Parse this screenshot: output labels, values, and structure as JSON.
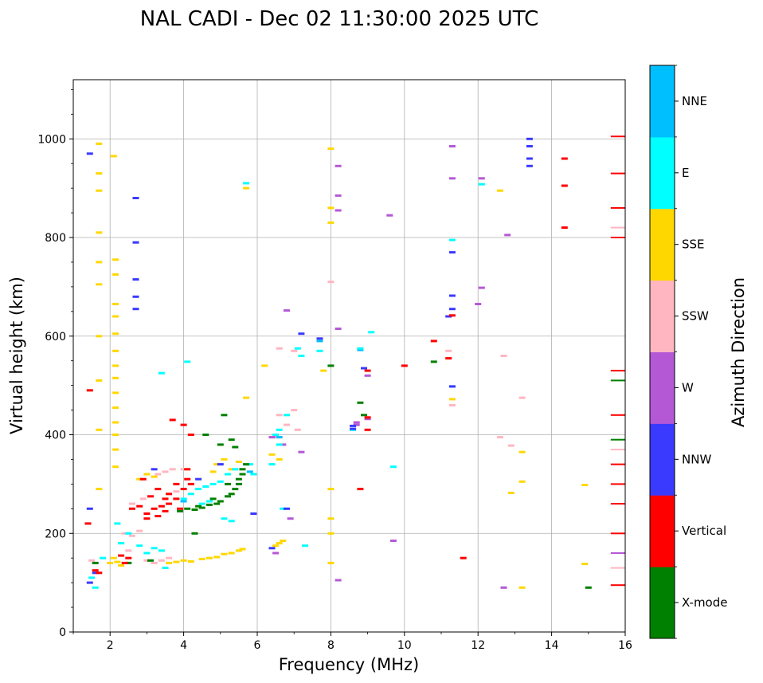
{
  "chart_data": {
    "type": "scatter",
    "title": "NAL CADI - Dec 02 11:30:00 2025 UTC",
    "xlabel": "Frequency (MHz)",
    "ylabel": "Virtual height (km)",
    "xlim": [
      1,
      16
    ],
    "ylim": [
      0,
      1120
    ],
    "xticks": [
      2,
      4,
      6,
      8,
      10,
      12,
      14,
      16
    ],
    "yticks": [
      0,
      200,
      400,
      600,
      800,
      1000
    ],
    "grid": true,
    "colorbar": {
      "label": "Azimuth Direction",
      "entries": [
        {
          "name": "X-mode",
          "color": "#008000"
        },
        {
          "name": "Vertical",
          "color": "#ff0000"
        },
        {
          "name": "NNW",
          "color": "#3a3aff"
        },
        {
          "name": "W",
          "color": "#b558d6"
        },
        {
          "name": "SSW",
          "color": "#ffb6c1"
        },
        {
          "name": "SSE",
          "color": "#ffd700"
        },
        {
          "name": "E",
          "color": "#00ffff"
        },
        {
          "name": "NNE",
          "color": "#00bfff"
        }
      ]
    },
    "series": [
      {
        "name": "X-mode",
        "points": [
          [
            5.3,
            280
          ],
          [
            5.5,
            300
          ],
          [
            5.6,
            320
          ],
          [
            5.0,
            265
          ],
          [
            4.7,
            258
          ],
          [
            4.5,
            252
          ],
          [
            4.3,
            248
          ],
          [
            4.1,
            250
          ],
          [
            3.9,
            245
          ],
          [
            5.7,
            340
          ],
          [
            5.4,
            290
          ],
          [
            5.2,
            275
          ],
          [
            4.9,
            260
          ],
          [
            5.4,
            375
          ],
          [
            5.1,
            440
          ],
          [
            4.6,
            400
          ],
          [
            8.8,
            465
          ],
          [
            8.9,
            440
          ],
          [
            8.0,
            540
          ],
          [
            10.8,
            548
          ],
          [
            15.0,
            90
          ],
          [
            15.8,
            510
          ],
          [
            15.8,
            390
          ],
          [
            3.1,
            145
          ],
          [
            2.5,
            140
          ],
          [
            1.6,
            140
          ],
          [
            4.3,
            200
          ],
          [
            5.3,
            390
          ],
          [
            5.0,
            380
          ],
          [
            5.2,
            300
          ],
          [
            4.8,
            270
          ],
          [
            4.4,
            255
          ],
          [
            5.5,
            310
          ],
          [
            5.6,
            330
          ]
        ]
      },
      {
        "name": "Vertical",
        "points": [
          [
            3.0,
            240
          ],
          [
            3.2,
            250
          ],
          [
            3.4,
            255
          ],
          [
            3.6,
            260
          ],
          [
            3.8,
            270
          ],
          [
            4.0,
            290
          ],
          [
            4.2,
            300
          ],
          [
            3.0,
            230
          ],
          [
            3.3,
            235
          ],
          [
            3.5,
            245
          ],
          [
            3.9,
            250
          ],
          [
            2.8,
            255
          ],
          [
            2.6,
            250
          ],
          [
            2.4,
            140
          ],
          [
            2.5,
            150
          ],
          [
            2.3,
            155
          ],
          [
            1.6,
            125
          ],
          [
            1.7,
            120
          ],
          [
            4.1,
            330
          ],
          [
            4.2,
            400
          ],
          [
            3.7,
            430
          ],
          [
            4.0,
            420
          ],
          [
            2.9,
            310
          ],
          [
            3.3,
            290
          ],
          [
            3.6,
            280
          ],
          [
            8.8,
            290
          ],
          [
            9.0,
            435
          ],
          [
            9.0,
            530
          ],
          [
            9.0,
            410
          ],
          [
            10.8,
            590
          ],
          [
            11.2,
            555
          ],
          [
            11.6,
            150
          ],
          [
            1.45,
            490
          ],
          [
            1.4,
            220
          ],
          [
            14.35,
            905
          ],
          [
            14.35,
            820
          ],
          [
            14.35,
            960
          ],
          [
            11.3,
            642
          ],
          [
            15.8,
            1005
          ],
          [
            15.8,
            930
          ],
          [
            15.8,
            860
          ],
          [
            15.8,
            800
          ],
          [
            15.8,
            530
          ],
          [
            15.8,
            440
          ],
          [
            15.8,
            340
          ],
          [
            15.8,
            300
          ],
          [
            15.8,
            260
          ],
          [
            15.8,
            200
          ],
          [
            15.8,
            95
          ],
          [
            3.1,
            275
          ],
          [
            3.8,
            300
          ],
          [
            4.1,
            310
          ],
          [
            3.5,
            270
          ],
          [
            10.0,
            540
          ]
        ]
      },
      {
        "name": "NNW",
        "points": [
          [
            13.4,
            1000
          ],
          [
            13.4,
            985
          ],
          [
            13.4,
            960
          ],
          [
            13.4,
            945
          ],
          [
            11.3,
            770
          ],
          [
            11.3,
            655
          ],
          [
            11.3,
            682
          ],
          [
            11.3,
            498
          ],
          [
            11.2,
            640
          ],
          [
            8.9,
            535
          ],
          [
            8.6,
            412
          ],
          [
            8.6,
            418
          ],
          [
            6.8,
            250
          ],
          [
            5.9,
            240
          ],
          [
            7.2,
            605
          ],
          [
            7.7,
            595
          ],
          [
            1.45,
            970
          ],
          [
            1.45,
            250
          ],
          [
            1.45,
            100
          ],
          [
            2.7,
            880
          ],
          [
            2.7,
            790
          ],
          [
            2.7,
            715
          ],
          [
            2.7,
            655
          ],
          [
            2.7,
            680
          ],
          [
            6.4,
            170
          ],
          [
            3.2,
            330
          ],
          [
            1.6,
            120
          ],
          [
            4.4,
            310
          ],
          [
            5.0,
            340
          ]
        ]
      },
      {
        "name": "W",
        "points": [
          [
            12.8,
            805
          ],
          [
            12.1,
            698
          ],
          [
            12.0,
            665
          ],
          [
            11.3,
            985
          ],
          [
            11.3,
            920
          ],
          [
            12.1,
            920
          ],
          [
            8.2,
            945
          ],
          [
            8.2,
            885
          ],
          [
            8.2,
            855
          ],
          [
            8.2,
            615
          ],
          [
            8.2,
            105
          ],
          [
            8.7,
            420
          ],
          [
            8.7,
            425
          ],
          [
            9.0,
            432
          ],
          [
            9.0,
            520
          ],
          [
            9.6,
            845
          ],
          [
            9.7,
            185
          ],
          [
            12.7,
            90
          ],
          [
            6.8,
            652
          ],
          [
            6.5,
            160
          ],
          [
            15.8,
            160
          ],
          [
            7.2,
            365
          ],
          [
            6.9,
            230
          ],
          [
            6.4,
            395
          ],
          [
            6.7,
            380
          ]
        ]
      },
      {
        "name": "SSW",
        "points": [
          [
            3.2,
            140
          ],
          [
            3.4,
            145
          ],
          [
            3.6,
            150
          ],
          [
            3.0,
            145
          ],
          [
            2.6,
            195
          ],
          [
            2.8,
            205
          ],
          [
            2.4,
            200
          ],
          [
            3.3,
            320
          ],
          [
            3.5,
            325
          ],
          [
            3.7,
            330
          ],
          [
            2.6,
            260
          ],
          [
            2.9,
            270
          ],
          [
            6.6,
            440
          ],
          [
            6.8,
            420
          ],
          [
            7.0,
            450
          ],
          [
            7.1,
            410
          ],
          [
            6.5,
            395
          ],
          [
            6.6,
            575
          ],
          [
            7.0,
            570
          ],
          [
            8.0,
            710
          ],
          [
            13.2,
            475
          ],
          [
            12.7,
            560
          ],
          [
            12.6,
            395
          ],
          [
            12.9,
            378
          ],
          [
            11.3,
            460
          ],
          [
            11.2,
            570
          ],
          [
            15.8,
            820
          ],
          [
            15.8,
            370
          ],
          [
            15.8,
            130
          ],
          [
            1.5,
            145
          ],
          [
            4.0,
            330
          ],
          [
            3.8,
            285
          ],
          [
            2.5,
            165
          ]
        ]
      },
      {
        "name": "SSE",
        "points": [
          [
            3.6,
            140
          ],
          [
            3.8,
            142
          ],
          [
            4.0,
            145
          ],
          [
            4.2,
            143
          ],
          [
            4.5,
            148
          ],
          [
            4.7,
            150
          ],
          [
            4.9,
            152
          ],
          [
            5.1,
            158
          ],
          [
            5.3,
            160
          ],
          [
            5.5,
            165
          ],
          [
            5.6,
            168
          ],
          [
            6.6,
            180
          ],
          [
            6.7,
            185
          ],
          [
            6.5,
            175
          ],
          [
            2.1,
            150
          ],
          [
            2.0,
            140
          ],
          [
            2.3,
            135
          ],
          [
            2.2,
            142
          ],
          [
            4.9,
            340
          ],
          [
            5.1,
            350
          ],
          [
            5.3,
            330
          ],
          [
            5.5,
            345
          ],
          [
            3.0,
            320
          ],
          [
            2.8,
            310
          ],
          [
            3.2,
            315
          ],
          [
            12.6,
            895
          ],
          [
            13.2,
            365
          ],
          [
            13.2,
            305
          ],
          [
            12.9,
            282
          ],
          [
            13.2,
            90
          ],
          [
            14.9,
            298
          ],
          [
            14.9,
            138
          ],
          [
            11.3,
            472
          ],
          [
            6.6,
            350
          ],
          [
            6.4,
            360
          ],
          [
            7.8,
            530
          ],
          [
            8.0,
            980
          ],
          [
            8.0,
            860
          ],
          [
            8.0,
            830
          ],
          [
            8.0,
            290
          ],
          [
            8.0,
            230
          ],
          [
            8.0,
            200
          ],
          [
            8.0,
            140
          ],
          [
            2.1,
            965
          ],
          [
            2.15,
            755
          ],
          [
            2.15,
            725
          ],
          [
            2.15,
            665
          ],
          [
            2.15,
            640
          ],
          [
            2.15,
            605
          ],
          [
            2.15,
            570
          ],
          [
            2.15,
            540
          ],
          [
            2.15,
            515
          ],
          [
            2.15,
            485
          ],
          [
            2.15,
            455
          ],
          [
            2.15,
            425
          ],
          [
            2.15,
            400
          ],
          [
            2.15,
            370
          ],
          [
            2.15,
            335
          ],
          [
            1.7,
            990
          ],
          [
            1.7,
            930
          ],
          [
            1.7,
            895
          ],
          [
            1.7,
            810
          ],
          [
            1.7,
            750
          ],
          [
            1.7,
            705
          ],
          [
            1.7,
            600
          ],
          [
            1.7,
            510
          ],
          [
            1.7,
            410
          ],
          [
            1.7,
            290
          ],
          [
            5.7,
            900
          ],
          [
            5.7,
            475
          ],
          [
            6.2,
            540
          ],
          [
            4.8,
            325
          ]
        ]
      },
      {
        "name": "E",
        "points": [
          [
            3.2,
            170
          ],
          [
            3.4,
            165
          ],
          [
            3.0,
            160
          ],
          [
            2.8,
            175
          ],
          [
            4.0,
            270
          ],
          [
            4.2,
            280
          ],
          [
            4.4,
            290
          ],
          [
            4.6,
            295
          ],
          [
            4.8,
            300
          ],
          [
            5.0,
            305
          ],
          [
            5.2,
            320
          ],
          [
            5.4,
            330
          ],
          [
            5.8,
            340
          ],
          [
            5.9,
            320
          ],
          [
            4.5,
            260
          ],
          [
            4.7,
            265
          ],
          [
            6.5,
            400
          ],
          [
            6.6,
            410
          ],
          [
            6.4,
            340
          ],
          [
            6.6,
            380
          ],
          [
            6.8,
            440
          ],
          [
            7.1,
            575
          ],
          [
            7.2,
            560
          ],
          [
            7.7,
            570
          ],
          [
            8.6,
            410
          ],
          [
            8.8,
            575
          ],
          [
            9.1,
            608
          ],
          [
            9.7,
            335
          ],
          [
            11.3,
            795
          ],
          [
            12.1,
            908
          ],
          [
            5.7,
            910
          ],
          [
            4.1,
            548
          ],
          [
            3.4,
            525
          ],
          [
            1.5,
            110
          ],
          [
            1.6,
            90
          ],
          [
            1.8,
            150
          ],
          [
            2.3,
            180
          ],
          [
            2.5,
            200
          ],
          [
            6.7,
            250
          ],
          [
            5.3,
            225
          ],
          [
            5.1,
            230
          ],
          [
            7.3,
            175
          ],
          [
            2.2,
            220
          ],
          [
            3.5,
            130
          ]
        ]
      },
      {
        "name": "NNE",
        "points": [
          [
            8.8,
            572
          ],
          [
            11.3,
            498
          ],
          [
            7.7,
            590
          ],
          [
            6.6,
            395
          ],
          [
            5.8,
            325
          ],
          [
            4.0,
            265
          ]
        ]
      }
    ]
  }
}
